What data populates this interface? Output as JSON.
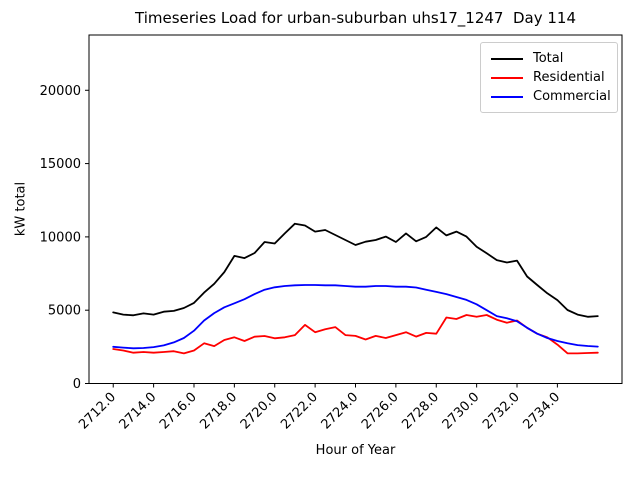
{
  "figure": {
    "title": "Timeseries Load for urban-suburban uhs17_1247  Day 114"
  },
  "chart_data": {
    "type": "line",
    "title": "Timeseries Load for urban-suburban uhs17_1247  Day 114",
    "xlabel": "Hour of Year",
    "ylabel": "kW total",
    "xlim": [
      2710.8,
      2737.2
    ],
    "ylim": [
      0,
      23770
    ],
    "grid": false,
    "legend_position": "upper right",
    "xtick_values": [
      2712,
      2714,
      2716,
      2718,
      2720,
      2722,
      2724,
      2726,
      2728,
      2730,
      2732,
      2734
    ],
    "xtick_labels": [
      "2712.0",
      "2714.0",
      "2716.0",
      "2718.0",
      "2720.0",
      "2722.0",
      "2724.0",
      "2726.0",
      "2728.0",
      "2730.0",
      "2732.0",
      "2734.0"
    ],
    "ytick_values": [
      0,
      5000,
      10000,
      15000,
      20000
    ],
    "ytick_labels": [
      "0",
      "5000",
      "10000",
      "15000",
      "20000"
    ],
    "x": [
      2712.0,
      2712.5,
      2713.0,
      2713.5,
      2714.0,
      2714.5,
      2715.0,
      2715.5,
      2716.0,
      2716.5,
      2717.0,
      2717.5,
      2718.0,
      2718.5,
      2719.0,
      2719.5,
      2720.0,
      2720.5,
      2721.0,
      2721.5,
      2722.0,
      2722.5,
      2723.0,
      2723.5,
      2724.0,
      2724.5,
      2725.0,
      2725.5,
      2726.0,
      2726.5,
      2727.0,
      2727.5,
      2728.0,
      2728.5,
      2729.0,
      2729.5,
      2730.0,
      2730.5,
      2731.0,
      2731.5,
      2732.0,
      2732.5,
      2733.0,
      2733.5,
      2734.0,
      2734.5,
      2735.0,
      2735.5,
      2736.0
    ],
    "series": [
      {
        "name": "Total",
        "color": "#000000",
        "values": [
          4850,
          4700,
          4650,
          4780,
          4700,
          4900,
          4950,
          5150,
          5500,
          6200,
          6800,
          7600,
          8700,
          8550,
          8900,
          9650,
          9550,
          10240,
          10900,
          10780,
          10360,
          10470,
          10130,
          9790,
          9450,
          9670,
          9790,
          10020,
          9650,
          10240,
          9700,
          10000,
          10650,
          10100,
          10360,
          10020,
          9330,
          8880,
          8420,
          8250,
          8380,
          7300,
          6720,
          6150,
          5690,
          5010,
          4700,
          4550,
          4600
        ]
      },
      {
        "name": "Residential",
        "color": "#ff0000",
        "values": [
          2350,
          2250,
          2100,
          2150,
          2100,
          2150,
          2200,
          2050,
          2250,
          2740,
          2550,
          2965,
          3150,
          2900,
          3190,
          3240,
          3080,
          3150,
          3300,
          4000,
          3500,
          3700,
          3850,
          3300,
          3250,
          3000,
          3250,
          3100,
          3300,
          3500,
          3200,
          3450,
          3400,
          4500,
          4400,
          4670,
          4550,
          4670,
          4350,
          4150,
          4300,
          3800,
          3400,
          3150,
          2650,
          2060,
          2050,
          2080,
          2100
        ]
      },
      {
        "name": "Commercial",
        "color": "#0000ff",
        "values": [
          2500,
          2450,
          2400,
          2420,
          2480,
          2600,
          2800,
          3100,
          3600,
          4300,
          4800,
          5200,
          5470,
          5750,
          6100,
          6400,
          6560,
          6650,
          6700,
          6720,
          6720,
          6700,
          6700,
          6650,
          6600,
          6600,
          6650,
          6650,
          6600,
          6600,
          6550,
          6400,
          6250,
          6100,
          5900,
          5700,
          5400,
          5000,
          4600,
          4450,
          4250,
          3800,
          3400,
          3100,
          2900,
          2750,
          2620,
          2560,
          2520
        ]
      }
    ]
  }
}
